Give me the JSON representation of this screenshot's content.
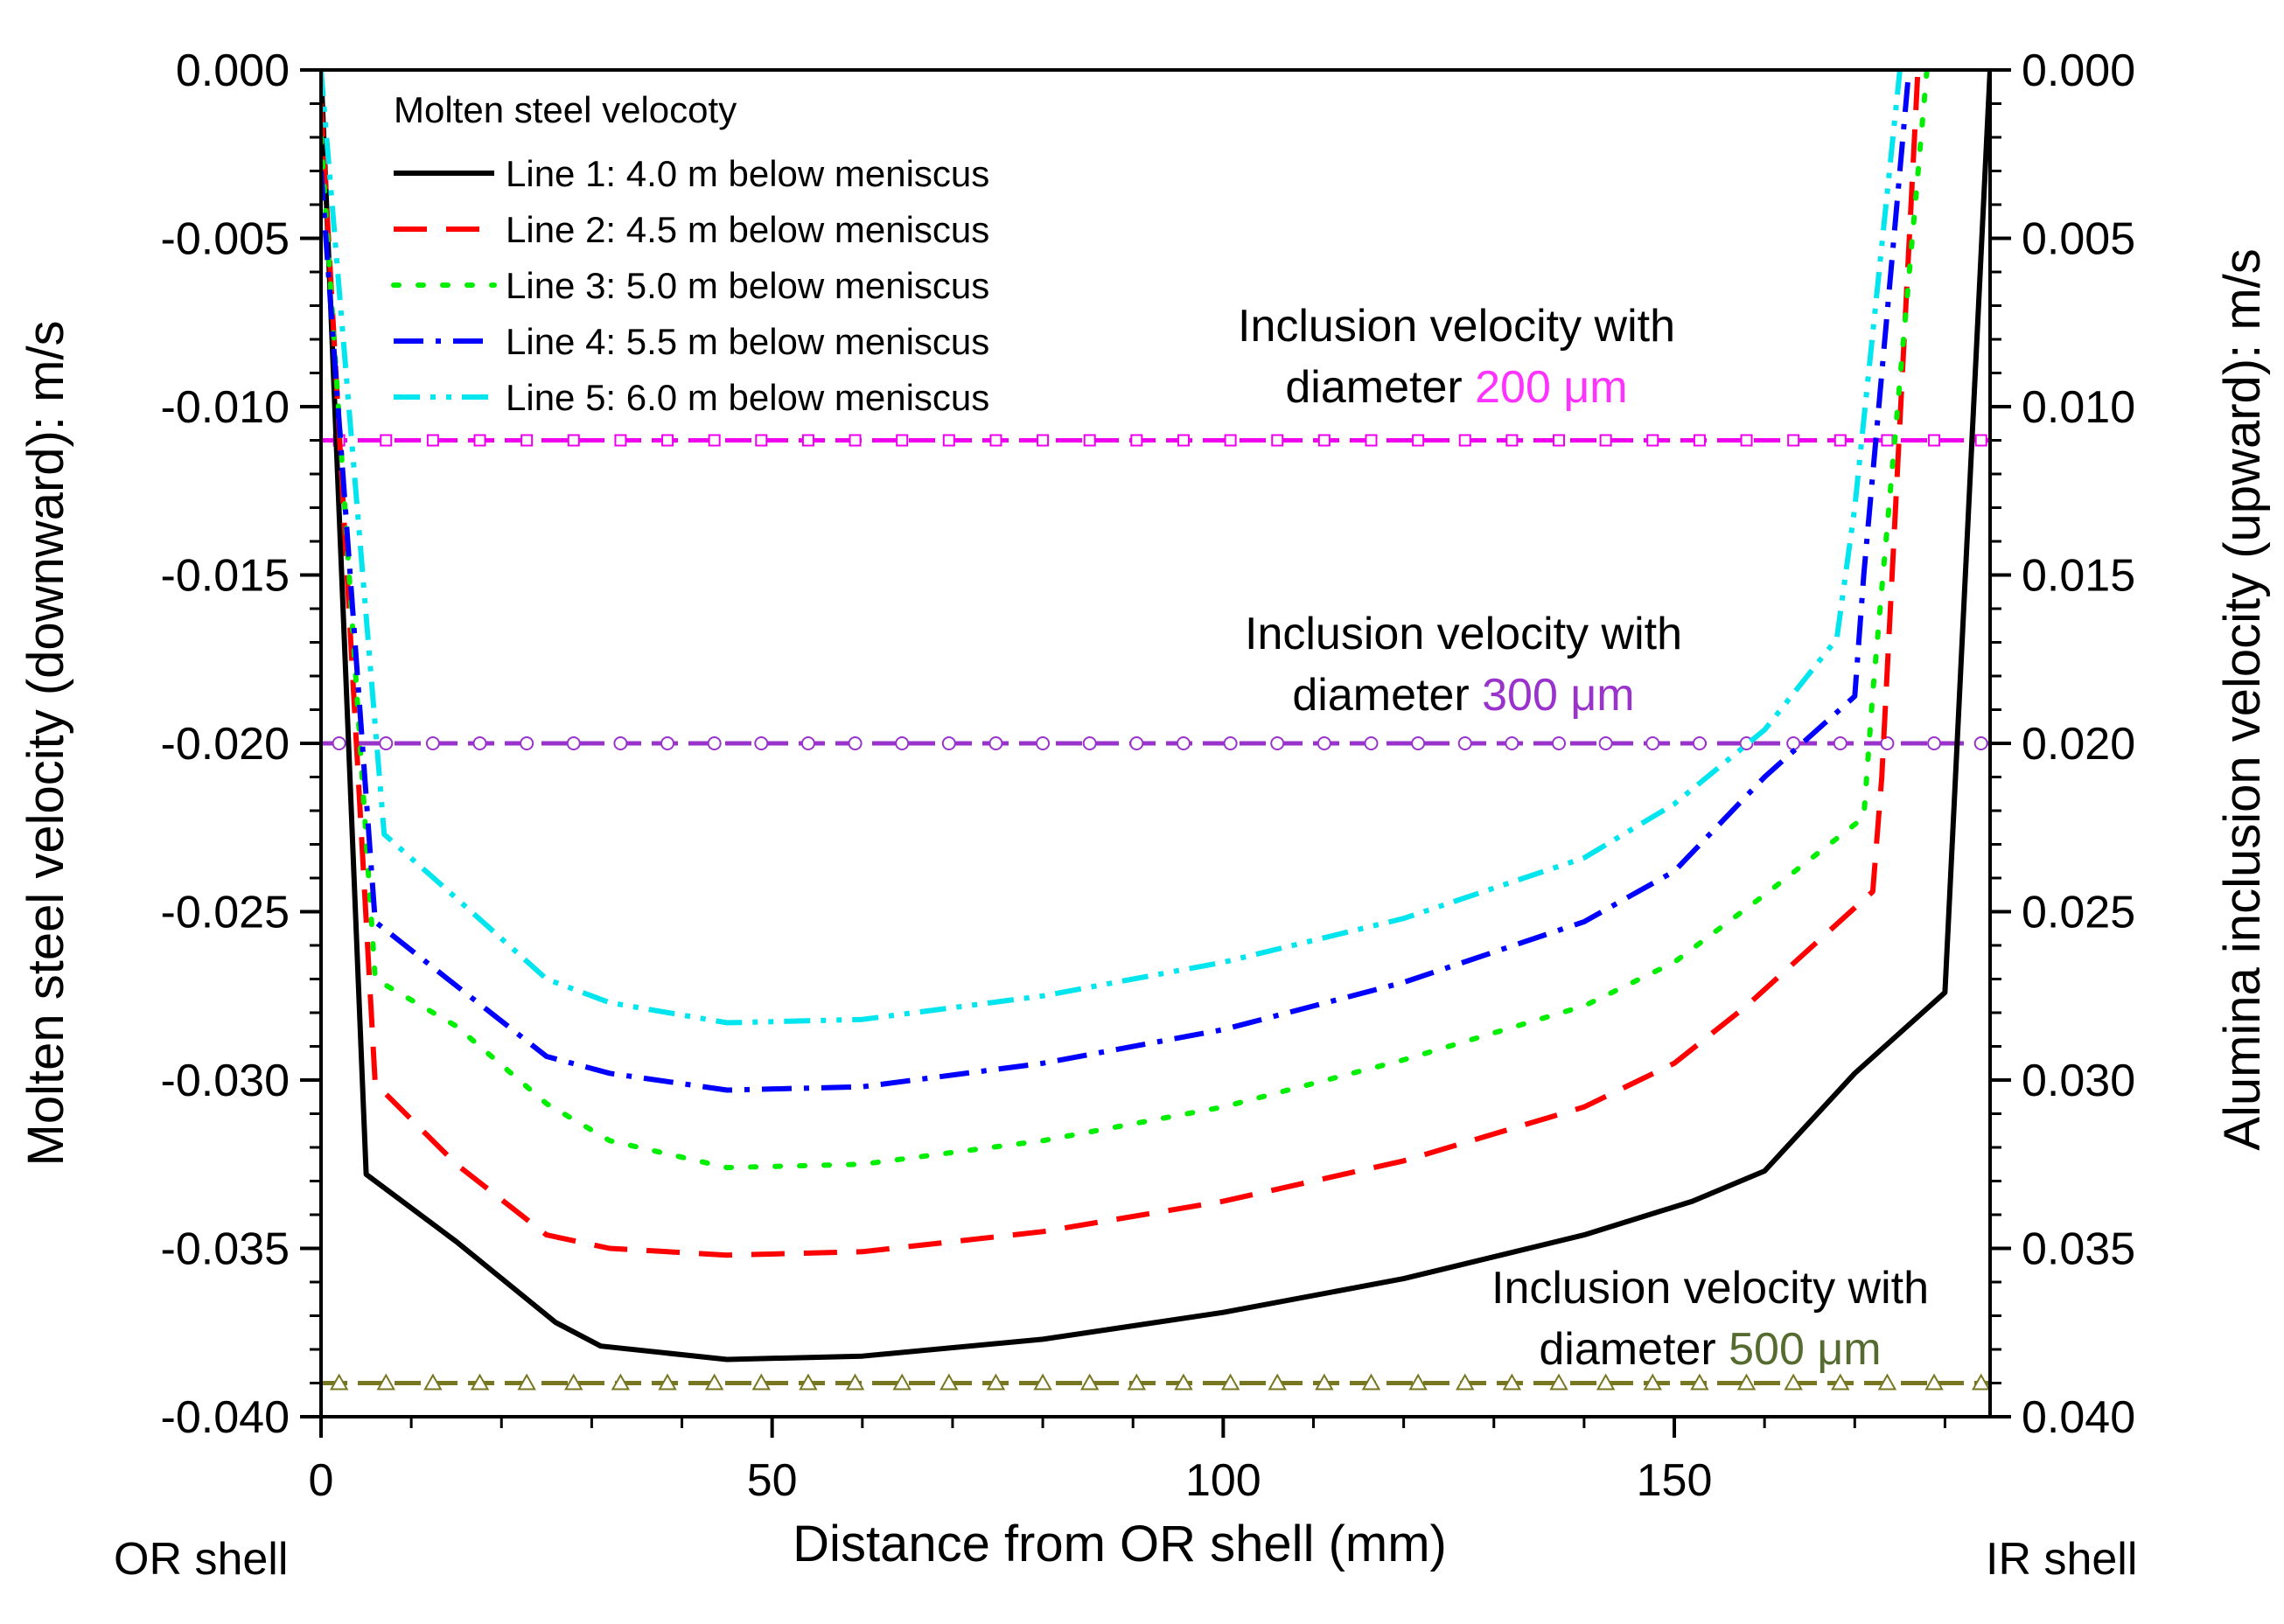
{
  "chart_data": {
    "type": "line",
    "xlabel": "Distance from OR shell (mm)",
    "ylabel_left": "Molten steel velocity (downward): m/s",
    "ylabel_right": "Alumina inclusion velocity (upward): m/s",
    "xlim": [
      0,
      185
    ],
    "ylim": [
      -0.04,
      0.0
    ],
    "x_ticks": [
      0,
      50,
      100,
      150
    ],
    "x_tick_labels": [
      "0",
      "50",
      "100",
      "150"
    ],
    "y_ticks": [
      0.0,
      -0.005,
      -0.01,
      -0.015,
      -0.02,
      -0.025,
      -0.03,
      -0.035,
      -0.04
    ],
    "y_tick_labels_left": [
      "0.000",
      "-0.005",
      "-0.010",
      "-0.015",
      "-0.020",
      "-0.025",
      "-0.030",
      "-0.035",
      "-0.040"
    ],
    "y_tick_labels_right": [
      "0.000",
      "0.005",
      "0.010",
      "0.015",
      "0.020",
      "0.025",
      "0.030",
      "0.035",
      "0.040"
    ],
    "x_end_labels": {
      "left": "OR shell",
      "right": "IR shell"
    },
    "legend_title": "Molten steel velocoty",
    "series": [
      {
        "name": "Line 1: 4.0 m below meniscus",
        "color": "#000000",
        "dash": "solid",
        "x": [
          0,
          5,
          15,
          26,
          31,
          45,
          60,
          80,
          100,
          120,
          140,
          152,
          160,
          170,
          180,
          185
        ],
        "y": [
          0.0,
          -0.0328,
          -0.0348,
          -0.0372,
          -0.0379,
          -0.0383,
          -0.0382,
          -0.0377,
          -0.0369,
          -0.0359,
          -0.0346,
          -0.0336,
          -0.0327,
          -0.0298,
          -0.0274,
          0.0
        ]
      },
      {
        "name": "Line 2: 4.5 m below meniscus",
        "color": "#ff0000",
        "dash": "dashed",
        "x": [
          0,
          6,
          15,
          25,
          32,
          45,
          60,
          80,
          100,
          120,
          140,
          150,
          158,
          172,
          173,
          177
        ],
        "y": [
          -0.001,
          -0.0301,
          -0.0325,
          -0.0346,
          -0.035,
          -0.0352,
          -0.0351,
          -0.0345,
          -0.0336,
          -0.0324,
          -0.0308,
          -0.0295,
          -0.0278,
          -0.0244,
          -0.021,
          0.0
        ]
      },
      {
        "name": "Line 3: 5.0 m below meniscus",
        "color": "#00ee00",
        "dash": "dotted",
        "x": [
          0,
          6,
          15,
          25,
          32,
          45,
          60,
          80,
          100,
          120,
          140,
          150,
          160,
          171,
          172,
          178
        ],
        "y": [
          -0.002,
          -0.027,
          -0.0284,
          -0.0307,
          -0.0318,
          -0.0326,
          -0.0325,
          -0.0318,
          -0.0308,
          -0.0294,
          -0.0278,
          -0.0265,
          -0.0245,
          -0.0222,
          -0.0185,
          0.0
        ]
      },
      {
        "name": "Line 4: 5.5 m below meniscus",
        "color": "#0000ff",
        "dash": "dashdot",
        "x": [
          0,
          6,
          15,
          25,
          32,
          45,
          60,
          80,
          100,
          120,
          140,
          150,
          160,
          170,
          171,
          176
        ],
        "y": [
          -0.003,
          -0.0253,
          -0.0272,
          -0.0293,
          -0.0298,
          -0.0303,
          -0.0302,
          -0.0295,
          -0.0285,
          -0.0271,
          -0.0253,
          -0.0238,
          -0.021,
          -0.0186,
          -0.015,
          0.0
        ]
      },
      {
        "name": "Line 5: 6.0 m below meniscus",
        "color": "#00e5ee",
        "dash": "dashdotdot",
        "x": [
          0,
          7,
          15,
          25,
          32,
          45,
          60,
          80,
          100,
          120,
          140,
          150,
          160,
          168,
          170,
          175
        ],
        "y": [
          0.0,
          -0.0227,
          -0.0246,
          -0.027,
          -0.0277,
          -0.0283,
          -0.0282,
          -0.0275,
          -0.0265,
          -0.0252,
          -0.0234,
          -0.0218,
          -0.0196,
          -0.0169,
          -0.013,
          0.0
        ]
      }
    ],
    "reference_lines": [
      {
        "y": -0.011,
        "color": "#ee00ee",
        "marker": "square",
        "label_pre": "Inclusion velocity with",
        "label_mid": "diameter ",
        "label_value": "200 μm",
        "value_color": "#ff33ff"
      },
      {
        "y": -0.02,
        "color": "#9933cc",
        "marker": "circle",
        "label_pre": "Inclusion velocity with",
        "label_mid": "diameter ",
        "label_value": "300 μm",
        "value_color": "#9933cc"
      },
      {
        "y": -0.039,
        "color": "#777722",
        "marker": "triangle",
        "label_pre": "Inclusion velocity with",
        "label_mid": "diameter ",
        "label_value": "500 μm",
        "value_color": "#556b2f"
      }
    ]
  }
}
